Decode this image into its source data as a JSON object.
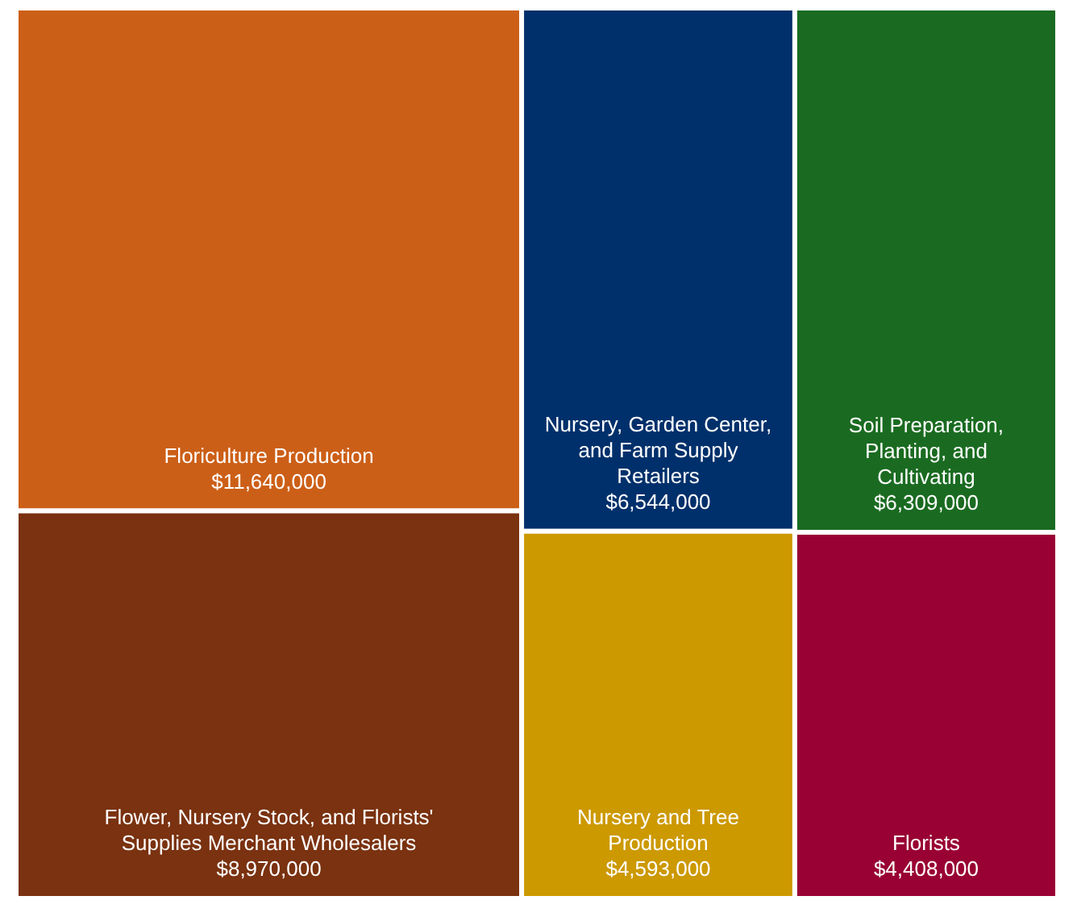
{
  "chart_data": {
    "type": "other",
    "categories": [
      "Floriculture Production",
      "Nursery, Garden Center, and Farm Supply Retailers",
      "Soil Preparation, Planting, and Cultivating",
      "Flower, Nursery Stock, and Florists' Supplies Merchant Wholesalers",
      "Nursery and Tree Production",
      "Florists"
    ],
    "values": [
      11640000,
      6544000,
      6309000,
      8970000,
      4593000,
      4408000
    ],
    "value_labels": [
      "$11,640,000",
      "$6,544,000",
      "$6,309,000",
      "$8,970,000",
      "$4,593,000",
      "$4,408,000"
    ],
    "colors": [
      "#cc5f17",
      "#00306b",
      "#1a6b21",
      "#7a3210",
      "#cc9900",
      "#990033"
    ]
  }
}
